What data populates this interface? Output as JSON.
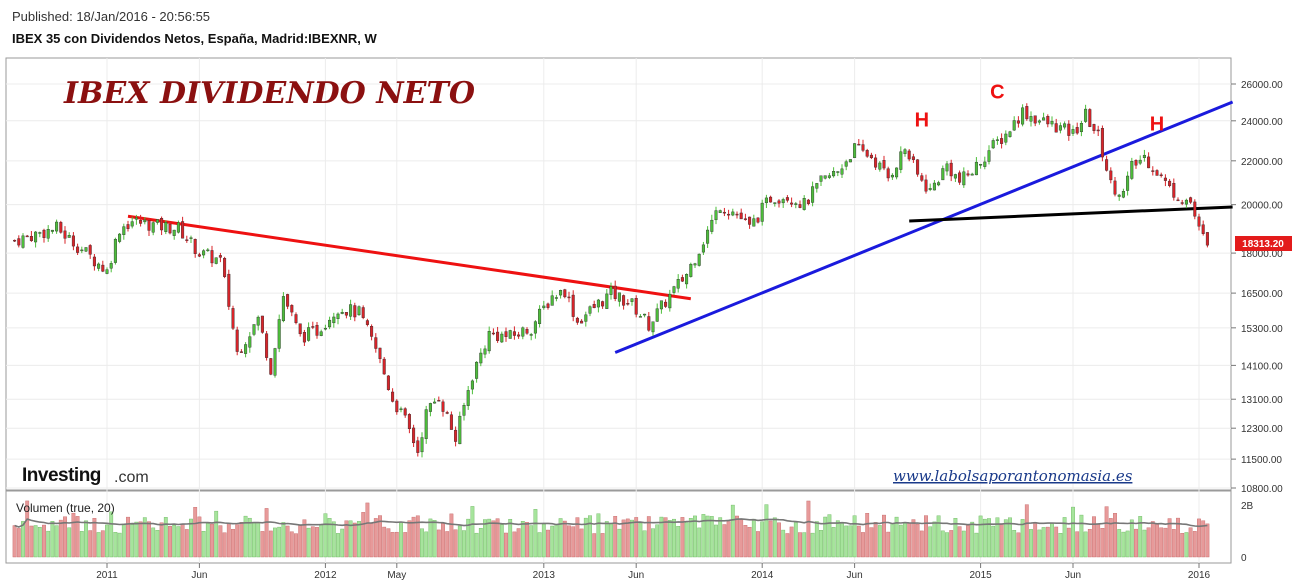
{
  "header": {
    "published": "Published: 18/Jan/2016 - 20:56:55",
    "instrument": "IBEX 35 con Dividendos Netos, España, Madrid:IBEXNR, W"
  },
  "chart_data": {
    "type": "candlestick",
    "title": "IBEX DIVIDENDO NETO",
    "price_axis": {
      "ticks": [
        10800,
        11500,
        12300,
        13100,
        14100,
        15300,
        16500,
        18000,
        20000,
        22000,
        24000,
        26000
      ],
      "tick_labels": [
        "10800.00",
        "11500.00",
        "12300.00",
        "13100.00",
        "14100.00",
        "15300.00",
        "16500.00",
        "18000.00",
        "20000.00",
        "22000.00",
        "24000.00",
        "26000.00"
      ],
      "last_price_label": "18313.20",
      "last_price": 18313.2
    },
    "x_axis": {
      "labels": [
        "2011",
        "Jun",
        "2012",
        "May",
        "2013",
        "Jun",
        "2014",
        "Jun",
        "2015",
        "Jun",
        "2016"
      ],
      "label_weeks": [
        0,
        22,
        52,
        69,
        104,
        126,
        156,
        178,
        208,
        230,
        260
      ]
    },
    "weekly_close_anchors": [
      {
        "week": -22,
        "close": 18500
      },
      {
        "week": -12,
        "close": 19000
      },
      {
        "week": 0,
        "close": 17300
      },
      {
        "week": 3,
        "close": 19000
      },
      {
        "week": 6,
        "close": 19300
      },
      {
        "week": 12,
        "close": 19100
      },
      {
        "week": 17,
        "close": 19000
      },
      {
        "week": 22,
        "close": 18000
      },
      {
        "week": 27,
        "close": 17700
      },
      {
        "week": 31,
        "close": 14500
      },
      {
        "week": 36,
        "close": 15600
      },
      {
        "week": 39,
        "close": 14000
      },
      {
        "week": 42,
        "close": 16400
      },
      {
        "week": 46,
        "close": 15000
      },
      {
        "week": 50,
        "close": 15200
      },
      {
        "week": 55,
        "close": 16000
      },
      {
        "week": 60,
        "close": 15800
      },
      {
        "week": 64,
        "close": 14600
      },
      {
        "week": 68,
        "close": 13100
      },
      {
        "week": 71,
        "close": 12500
      },
      {
        "week": 74,
        "close": 11700
      },
      {
        "week": 76,
        "close": 12700
      },
      {
        "week": 79,
        "close": 13200
      },
      {
        "week": 83,
        "close": 12000
      },
      {
        "week": 87,
        "close": 13800
      },
      {
        "week": 91,
        "close": 15100
      },
      {
        "week": 96,
        "close": 15000
      },
      {
        "week": 101,
        "close": 15300
      },
      {
        "week": 106,
        "close": 16400
      },
      {
        "week": 109,
        "close": 16600
      },
      {
        "week": 112,
        "close": 15500
      },
      {
        "week": 116,
        "close": 16000
      },
      {
        "week": 120,
        "close": 16500
      },
      {
        "week": 125,
        "close": 16100
      },
      {
        "week": 129,
        "close": 15400
      },
      {
        "week": 133,
        "close": 16200
      },
      {
        "week": 138,
        "close": 17200
      },
      {
        "week": 142,
        "close": 18500
      },
      {
        "week": 146,
        "close": 20000
      },
      {
        "week": 150,
        "close": 19600
      },
      {
        "week": 153,
        "close": 19000
      },
      {
        "week": 158,
        "close": 20300
      },
      {
        "week": 162,
        "close": 20400
      },
      {
        "week": 166,
        "close": 20000
      },
      {
        "week": 170,
        "close": 21000
      },
      {
        "week": 174,
        "close": 21500
      },
      {
        "week": 178,
        "close": 22600
      },
      {
        "week": 182,
        "close": 22200
      },
      {
        "week": 186,
        "close": 21200
      },
      {
        "week": 190,
        "close": 22600
      },
      {
        "week": 193,
        "close": 21300
      },
      {
        "week": 196,
        "close": 20600
      },
      {
        "week": 200,
        "close": 21800
      },
      {
        "week": 203,
        "close": 21000
      },
      {
        "week": 206,
        "close": 21500
      },
      {
        "week": 210,
        "close": 22500
      },
      {
        "week": 214,
        "close": 23300
      },
      {
        "week": 218,
        "close": 24500
      },
      {
        "week": 222,
        "close": 24000
      },
      {
        "week": 226,
        "close": 23700
      },
      {
        "week": 230,
        "close": 23300
      },
      {
        "week": 233,
        "close": 24300
      },
      {
        "week": 236,
        "close": 23200
      },
      {
        "week": 239,
        "close": 20900
      },
      {
        "week": 242,
        "close": 20500
      },
      {
        "week": 244,
        "close": 21700
      },
      {
        "week": 247,
        "close": 22200
      },
      {
        "week": 250,
        "close": 21500
      },
      {
        "week": 253,
        "close": 20700
      },
      {
        "week": 256,
        "close": 20300
      },
      {
        "week": 258,
        "close": 20100
      },
      {
        "week": 260,
        "close": 18900
      },
      {
        "week": 262,
        "close": 18313
      }
    ],
    "trendlines": [
      {
        "name": "red",
        "color": "#ee1111",
        "from": {
          "week": 5,
          "price": 19500
        },
        "to": {
          "week": 139,
          "price": 16300
        }
      },
      {
        "name": "blue",
        "color": "#1a1add",
        "from": {
          "week": 121,
          "price": 14500
        },
        "to": {
          "week": 268,
          "price": 25000
        }
      },
      {
        "name": "black",
        "color": "#000000",
        "from": {
          "week": 191,
          "price": 19300
        },
        "to": {
          "week": 268,
          "price": 19900
        }
      }
    ],
    "annotations": [
      {
        "text": "H",
        "week": 194,
        "price": 23700
      },
      {
        "text": "C",
        "week": 212,
        "price": 25200
      },
      {
        "text": "H",
        "week": 250,
        "price": 23500
      }
    ],
    "volume": {
      "label": "Volumen (true, 20)",
      "axis_labels": [
        "2B",
        "0"
      ],
      "axis_values": [
        2000000000,
        0
      ]
    },
    "colors": {
      "up": "#4dbd3b",
      "down": "#d8242a",
      "volume_up": "#a6e49c",
      "volume_down": "#e79a9a",
      "volume_ma": "#777777"
    }
  },
  "branding": {
    "logo_word": "Investing",
    "logo_suffix": ".com",
    "site_url": "www.labolsaporantonomasia.es"
  }
}
